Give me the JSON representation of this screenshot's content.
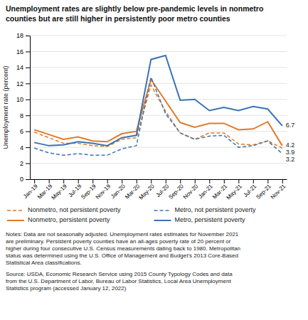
{
  "chart_data": {
    "type": "line",
    "title": "Unemployment rates are slightly below pre-pandemic levels in nonmetro\ncounties but are still higher in persistently poor metro counties",
    "y_label": "Unemployment rate (percent)",
    "categories": [
      "Jan-19",
      "Mar-19",
      "May-19",
      "Jul-19",
      "Sep-19",
      "Nov-19",
      "Jan-20",
      "Mar-20",
      "May-20",
      "Jul-20",
      "Sep-20",
      "Nov-20",
      "Jan-21",
      "Mar-21",
      "May-21",
      "Jul-21",
      "Sep-21",
      "Nov-21"
    ],
    "series": [
      {
        "name": "Nonmetro, not persistent poverty",
        "color": "#e07b2a",
        "line_style": "dashed",
        "values": [
          5.9,
          5.2,
          4.5,
          4.5,
          4.2,
          4.1,
          5.0,
          5.2,
          11.8,
          8.5,
          5.8,
          5.0,
          5.8,
          5.8,
          4.4,
          4.3,
          4.8,
          3.9
        ]
      },
      {
        "name": "Nonmetro, persistent poverty",
        "color": "#e07b2a",
        "line_style": "solid",
        "values": [
          6.2,
          5.6,
          5.0,
          5.3,
          4.8,
          4.7,
          5.7,
          6.0,
          12.5,
          9.8,
          7.1,
          6.5,
          7.0,
          7.0,
          6.2,
          6.3,
          7.2,
          4.2
        ]
      },
      {
        "name": "Metro, not persistent poverty",
        "color": "#3d73b4",
        "line_style": "dashed",
        "values": [
          3.9,
          3.3,
          3.0,
          3.2,
          3.0,
          3.0,
          3.8,
          4.2,
          12.8,
          8.2,
          5.8,
          5.0,
          5.4,
          5.5,
          4.0,
          4.2,
          4.8,
          3.2
        ]
      },
      {
        "name": "Metro, persistent poverty",
        "color": "#3d73b4",
        "line_style": "solid",
        "values": [
          4.6,
          4.2,
          4.3,
          4.7,
          4.5,
          4.2,
          5.2,
          5.5,
          15.0,
          15.5,
          9.9,
          10.0,
          8.6,
          9.0,
          8.6,
          9.1,
          8.8,
          6.7
        ]
      }
    ],
    "ylim": [
      0,
      18
    ],
    "yticks": [
      0,
      2,
      4,
      6,
      8,
      10,
      12,
      14,
      16,
      18
    ],
    "grid": true,
    "legend": "bottom",
    "annotations": [
      {
        "text": "6.7",
        "x": "Nov-21",
        "y": 6.7
      },
      {
        "text": "4.2",
        "x": "Nov-21",
        "y": 4.2
      },
      {
        "text": "3.9",
        "x": "Nov-21",
        "y": 3.9
      },
      {
        "text": "3.2",
        "x": "Nov-21",
        "y": 3.2
      }
    ],
    "notes": [
      "Notes: Data are not seasonally adjusted. Unemployment rates estimates for November 2021",
      "are preliminary. Persistent poverty counties have an all-ages poverty rate of 20 percent or",
      "higher during four consecutive U.S. Census measurements dating back to 1980. Metropolitan",
      "status was determined using the U.S. Office of Management and Budget’s 2013 Core-Based",
      "Statistical Area classifications."
    ],
    "source": [
      "Source: USDA, Economic Research Service using 2015 County Typology Codes and data",
      "from the U.S. Department of Labor, Bureau of Labor Statistics, Local Area Unemployment",
      "Statistics program (accessed January 12, 2022)"
    ]
  }
}
